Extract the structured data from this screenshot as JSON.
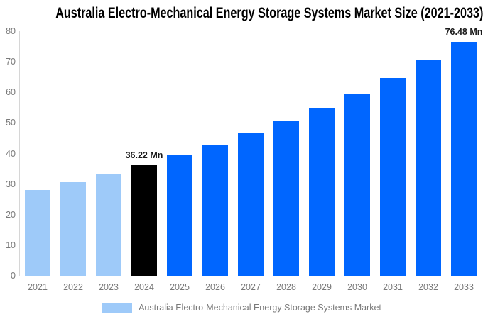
{
  "title": "Australia Electro-Mechanical Energy Storage Systems Market Size (2021-2033)",
  "colors": {
    "historical_bar": "#9ECAF9",
    "highlight_bar": "#000000",
    "forecast_bar": "#0066FF",
    "axis_text": "#7A7A7A",
    "axis_line": "#D6D6D6",
    "annotation_text": "#1A1A1A",
    "background": "#FFFFFF"
  },
  "chart_data": {
    "type": "bar",
    "title": "Australia Electro-Mechanical Energy Storage Systems Market Size (2021-2033)",
    "categories": [
      "2021",
      "2022",
      "2023",
      "2024",
      "2025",
      "2026",
      "2027",
      "2028",
      "2029",
      "2030",
      "2031",
      "2032",
      "2033"
    ],
    "values": [
      28.1,
      30.6,
      33.3,
      36.22,
      39.4,
      42.8,
      46.5,
      50.5,
      54.9,
      59.6,
      64.8,
      70.4,
      76.48
    ],
    "bar_colors": [
      "#9ECAF9",
      "#9ECAF9",
      "#9ECAF9",
      "#000000",
      "#0066FF",
      "#0066FF",
      "#0066FF",
      "#0066FF",
      "#0066FF",
      "#0066FF",
      "#0066FF",
      "#0066FF",
      "#0066FF"
    ],
    "xlabel": "",
    "ylabel": "",
    "ylim": [
      0,
      80
    ],
    "yticks": [
      0,
      10,
      20,
      30,
      40,
      50,
      60,
      70,
      80
    ],
    "grid": false,
    "annotations": [
      {
        "index": 3,
        "category": "2024",
        "text": "36.22 Mn"
      },
      {
        "index": 12,
        "category": "2033",
        "text": "76.48 Mn"
      }
    ],
    "legend": {
      "position": "bottom",
      "items": [
        {
          "label": "Australia Electro-Mechanical Energy Storage Systems Market",
          "color": "#9ECAF9"
        }
      ]
    }
  }
}
